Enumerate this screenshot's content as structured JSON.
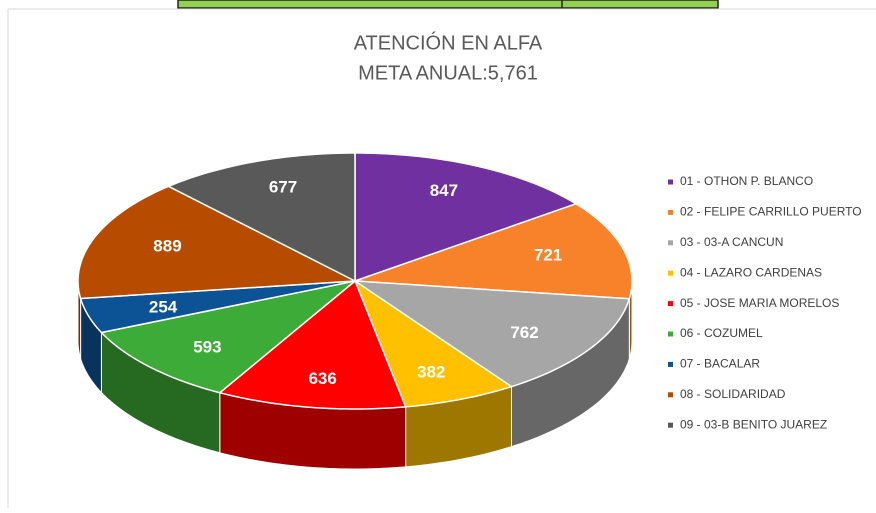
{
  "chart_data": {
    "type": "pie",
    "title": "ATENCIÓN EN  ALFA",
    "subtitle": "META ANUAL:5,761",
    "categories": [
      "01 - OTHON P. BLANCO",
      "02 - FELIPE CARRILLO PUERTO",
      "03 - 03-A CANCUN",
      "04 - LAZARO CARDENAS",
      "05 - JOSE MARIA MORELOS",
      "06 - COZUMEL",
      "07 - BACALAR",
      "08 - SOLIDARIDAD",
      "09 - 03-B BENITO JUAREZ"
    ],
    "values": [
      847,
      721,
      762,
      382,
      636,
      593,
      254,
      889,
      677
    ],
    "colors": [
      "#7030a0",
      "#f8822a",
      "#a6a6a6",
      "#ffc000",
      "#ff0000",
      "#3dab37",
      "#0b5394",
      "#b74c00",
      "#595959"
    ],
    "legend": "right"
  }
}
